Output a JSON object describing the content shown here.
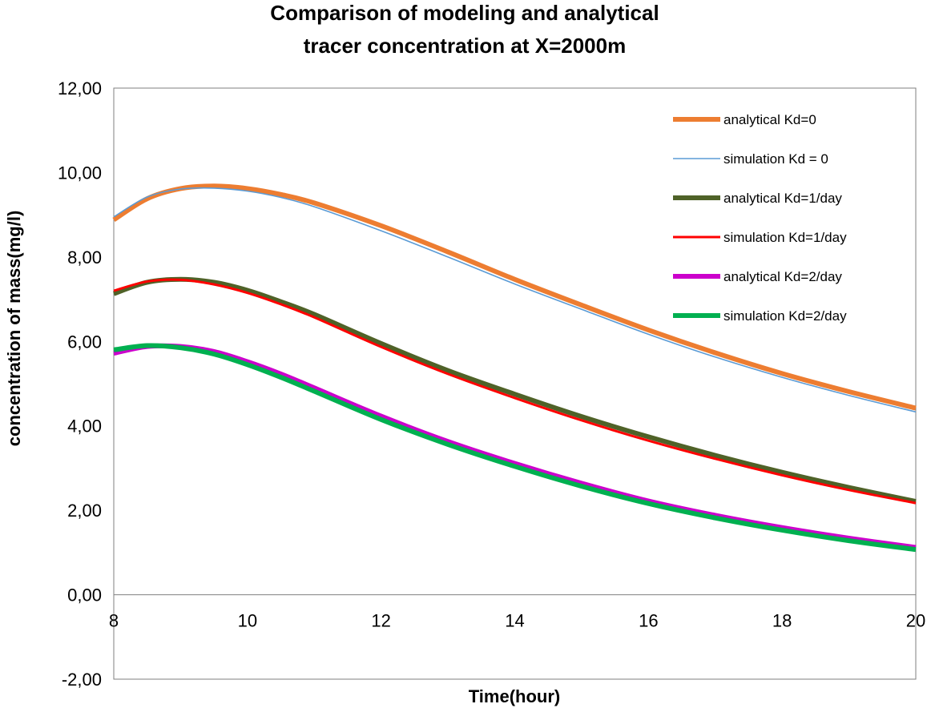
{
  "chart_data": {
    "type": "line",
    "title_lines": [
      "Comparison of modeling and analytical",
      "tracer concentration at X=2000m"
    ],
    "xlabel": "Time(hour)",
    "ylabel": "concentration of mass(mg/l)",
    "xlim": [
      8,
      20
    ],
    "ylim": [
      -2,
      12
    ],
    "x_ticks": [
      "8",
      "10",
      "12",
      "14",
      "16",
      "18",
      "20"
    ],
    "y_ticks": [
      "-2,00",
      "0,00",
      "2,00",
      "4,00",
      "6,00",
      "8,00",
      "10,00",
      "12,00"
    ],
    "legend_position": "top-right",
    "grid": false,
    "series": [
      {
        "name": "analytical Kd=0",
        "color": "#ED7D31",
        "style": "thick",
        "x": [
          8,
          8.5,
          9,
          9.5,
          10,
          10.5,
          11,
          12,
          13,
          14,
          15,
          16,
          17,
          18,
          19,
          20
        ],
        "y": [
          8.88,
          9.38,
          9.62,
          9.68,
          9.62,
          9.48,
          9.28,
          8.74,
          8.12,
          7.47,
          6.86,
          6.27,
          5.73,
          5.24,
          4.81,
          4.42
        ]
      },
      {
        "name": "simulation Kd = 0",
        "color": "#5B9BD5",
        "style": "thin",
        "x": [
          8,
          8.5,
          9,
          9.5,
          10,
          10.5,
          11,
          12,
          13,
          14,
          15,
          16,
          17,
          18,
          19,
          20
        ],
        "y": [
          8.95,
          9.42,
          9.61,
          9.63,
          9.56,
          9.41,
          9.19,
          8.62,
          8.0,
          7.36,
          6.76,
          6.17,
          5.63,
          5.15,
          4.72,
          4.33
        ]
      },
      {
        "name": "analytical Kd=1/day",
        "color": "#4F6228",
        "style": "thick",
        "x": [
          8,
          8.5,
          9,
          9.5,
          10,
          10.5,
          11,
          12,
          13,
          14,
          15,
          16,
          17,
          18,
          19,
          20
        ],
        "y": [
          7.13,
          7.4,
          7.47,
          7.4,
          7.21,
          6.94,
          6.64,
          5.95,
          5.31,
          4.75,
          4.22,
          3.74,
          3.3,
          2.9,
          2.54,
          2.21
        ]
      },
      {
        "name": "simulation Kd=1/day",
        "color": "#FF0000",
        "style": "medium",
        "x": [
          8,
          8.5,
          9,
          9.5,
          10,
          10.5,
          11,
          12,
          13,
          14,
          15,
          16,
          17,
          18,
          19,
          20
        ],
        "y": [
          7.2,
          7.42,
          7.46,
          7.35,
          7.15,
          6.88,
          6.57,
          5.87,
          5.23,
          4.66,
          4.13,
          3.65,
          3.22,
          2.83,
          2.48,
          2.17
        ]
      },
      {
        "name": "analytical Kd=2/day",
        "color": "#CC00CC",
        "style": "thick",
        "x": [
          8,
          8.5,
          9,
          9.5,
          10,
          10.5,
          11,
          12,
          13,
          14,
          15,
          16,
          17,
          18,
          19,
          20
        ],
        "y": [
          5.72,
          5.88,
          5.88,
          5.76,
          5.52,
          5.23,
          4.9,
          4.23,
          3.63,
          3.11,
          2.64,
          2.22,
          1.88,
          1.59,
          1.34,
          1.12
        ]
      },
      {
        "name": "simulation Kd=2/day",
        "color": "#00B050",
        "style": "thick",
        "x": [
          8,
          8.5,
          9,
          9.5,
          10,
          10.5,
          11,
          12,
          13,
          14,
          15,
          16,
          17,
          18,
          19,
          20
        ],
        "y": [
          5.8,
          5.9,
          5.85,
          5.7,
          5.45,
          5.15,
          4.82,
          4.15,
          3.56,
          3.04,
          2.57,
          2.16,
          1.82,
          1.53,
          1.28,
          1.07
        ]
      }
    ]
  }
}
